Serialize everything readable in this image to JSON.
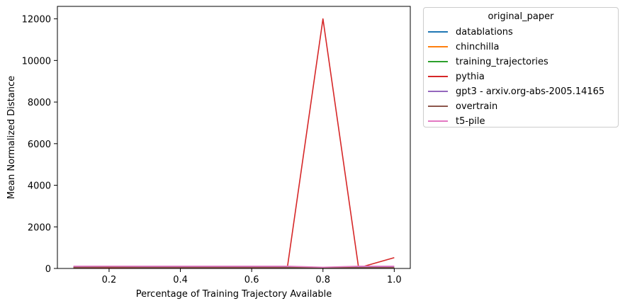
{
  "chart_data": {
    "type": "line",
    "title": "",
    "xlabel": "Percentage of Training Trajectory Available",
    "ylabel": "Mean Normalized Distance",
    "xlim": [
      0.055,
      1.045
    ],
    "ylim": [
      0,
      12600
    ],
    "xticks": [
      0.2,
      0.4,
      0.6,
      0.8,
      1.0
    ],
    "xtick_labels": [
      "0.2",
      "0.4",
      "0.6",
      "0.8",
      "1.0"
    ],
    "yticks": [
      0,
      2000,
      4000,
      6000,
      8000,
      10000,
      12000
    ],
    "ytick_labels": [
      "0",
      "2000",
      "4000",
      "6000",
      "8000",
      "10000",
      "12000"
    ],
    "grid": false,
    "legend": {
      "title": "original_paper",
      "placement": "outside-top-right"
    },
    "x": [
      0.1,
      0.2,
      0.3,
      0.4,
      0.5,
      0.6,
      0.7,
      0.8,
      0.9,
      1.0
    ],
    "series": [
      {
        "name": "datablations",
        "color": "#1f77b4",
        "values": [
          20,
          40,
          30,
          25,
          25,
          25,
          25,
          20,
          20,
          20
        ]
      },
      {
        "name": "chinchilla",
        "color": "#ff7f0e",
        "values": [
          60,
          70,
          60,
          60,
          60,
          60,
          60,
          50,
          50,
          50
        ]
      },
      {
        "name": "training_trajectories",
        "color": "#2ca02c",
        "values": [
          40,
          50,
          40,
          40,
          40,
          40,
          40,
          30,
          30,
          30
        ]
      },
      {
        "name": "pythia",
        "color": "#d62728",
        "values": [
          30,
          30,
          30,
          30,
          30,
          30,
          30,
          12000,
          30,
          520
        ]
      },
      {
        "name": "gpt3 - arxiv.org-abs-2005.14165",
        "color": "#9467bd",
        "values": [
          80,
          100,
          80,
          80,
          80,
          80,
          80,
          40,
          70,
          80
        ]
      },
      {
        "name": "overtrain",
        "color": "#8c564b",
        "values": [
          50,
          60,
          50,
          50,
          50,
          50,
          50,
          40,
          40,
          40
        ]
      },
      {
        "name": "t5-pile",
        "color": "#e377c2",
        "values": [
          110,
          110,
          110,
          110,
          110,
          110,
          110,
          60,
          110,
          110
        ]
      }
    ]
  }
}
